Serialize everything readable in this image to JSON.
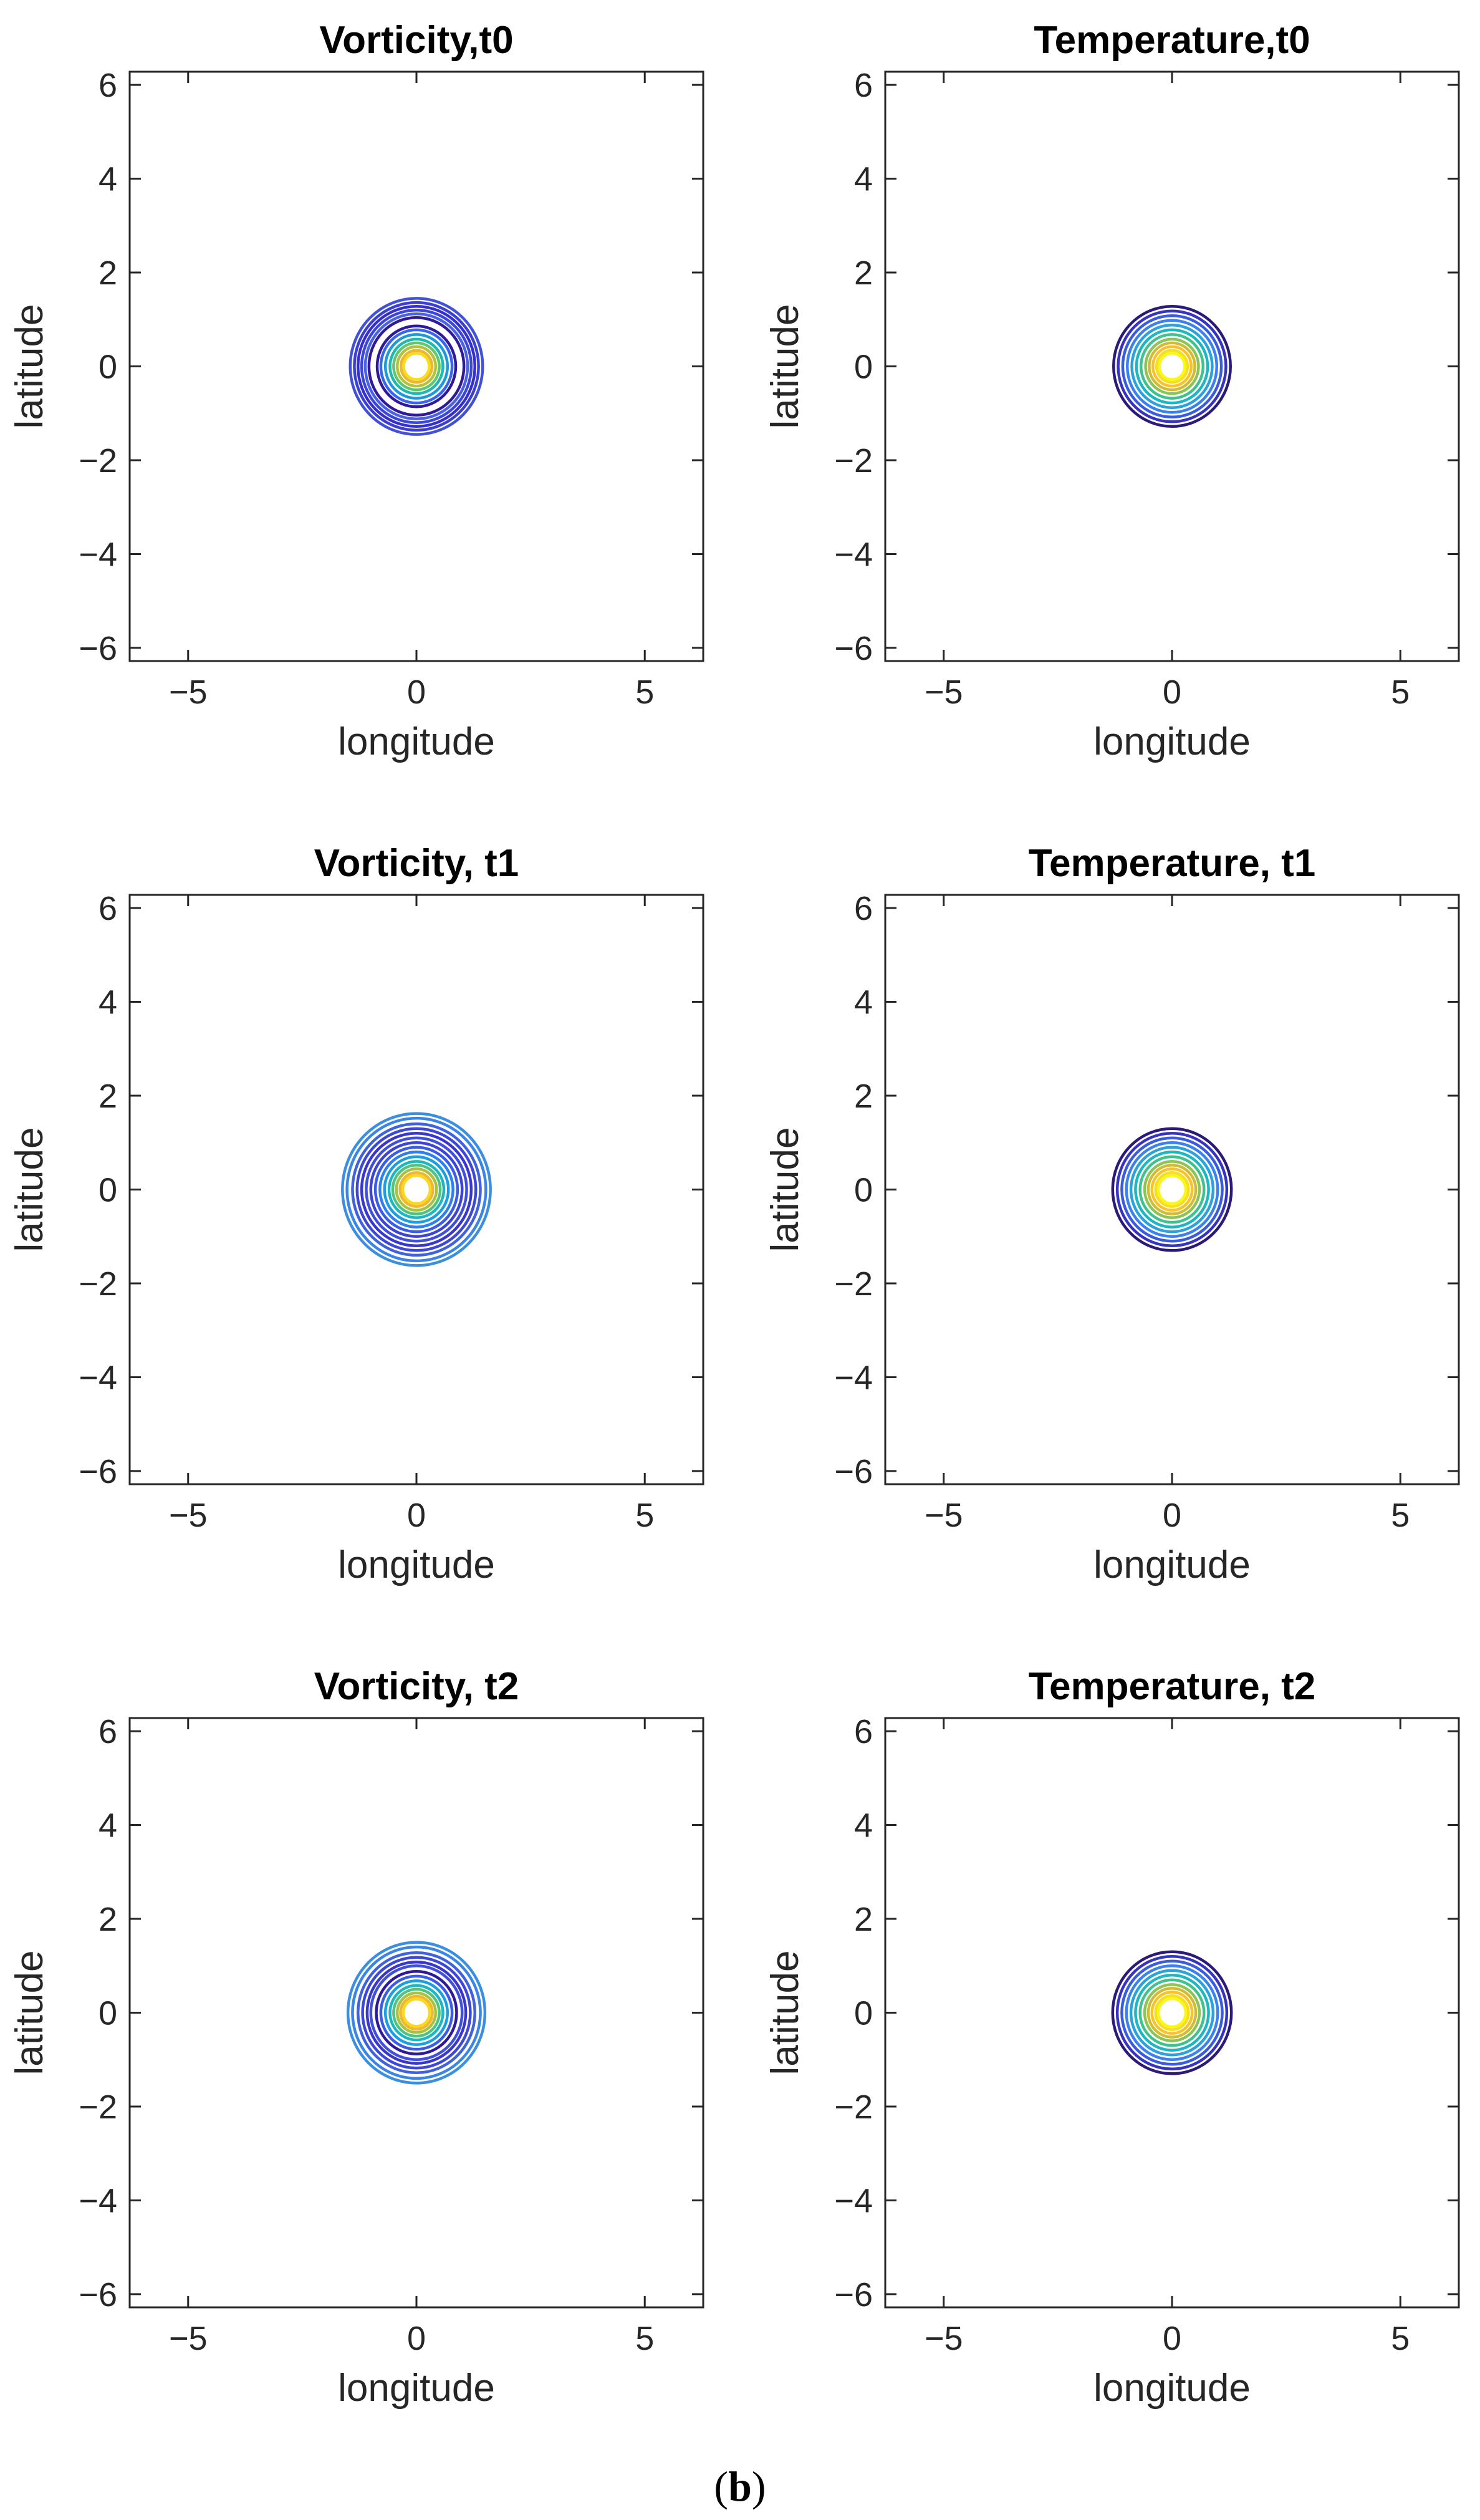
{
  "figure": {
    "caption_open": "(",
    "caption_letter": "b",
    "caption_close": ")"
  },
  "chart_data": [
    {
      "type": "contour",
      "title": "Vorticity,t0",
      "field": "vorticity",
      "xlabel": "longitude",
      "ylabel": "latitude",
      "xlim": [
        -6.28,
        6.28
      ],
      "ylim": [
        -6.28,
        6.28
      ],
      "xticks": [
        -5,
        0,
        5
      ],
      "yticks": [
        -6,
        -4,
        -2,
        0,
        2,
        4,
        6
      ],
      "center": [
        0,
        0
      ],
      "levels": [
        {
          "radius": 1.45,
          "color": "#4152d8"
        },
        {
          "radius": 1.36,
          "color": "#3b3fd3"
        },
        {
          "radius": 1.28,
          "color": "#352fcf"
        },
        {
          "radius": 1.2,
          "color": "#3d46da"
        },
        {
          "radius": 1.12,
          "color": "#4a63e6"
        },
        {
          "radius": 1.04,
          "color": "#2f1a9e"
        },
        {
          "radius": 0.86,
          "color": "#2f1a9e"
        },
        {
          "radius": 0.78,
          "color": "#3866ee"
        },
        {
          "radius": 0.68,
          "color": "#1f9ad8"
        },
        {
          "radius": 0.58,
          "color": "#1fb9b0"
        },
        {
          "radius": 0.5,
          "color": "#5fc770"
        },
        {
          "radius": 0.42,
          "color": "#b4c33a"
        },
        {
          "radius": 0.34,
          "color": "#eeb730"
        },
        {
          "radius": 0.28,
          "color": "#f8dc20"
        }
      ]
    },
    {
      "type": "contour",
      "title": "Temperature,t0",
      "field": "temperature",
      "xlabel": "longitude",
      "ylabel": "latitude",
      "xlim": [
        -6.28,
        6.28
      ],
      "ylim": [
        -6.28,
        6.28
      ],
      "xticks": [
        -5,
        0,
        5
      ],
      "yticks": [
        -6,
        -4,
        -2,
        0,
        2,
        4,
        6
      ],
      "center": [
        0,
        0
      ],
      "levels": [
        {
          "radius": 1.28,
          "color": "#2b1a7a"
        },
        {
          "radius": 1.18,
          "color": "#3634c0"
        },
        {
          "radius": 1.08,
          "color": "#3a5de0"
        },
        {
          "radius": 0.98,
          "color": "#3b82f0"
        },
        {
          "radius": 0.88,
          "color": "#2aa2dc"
        },
        {
          "radius": 0.78,
          "color": "#1cb7c0"
        },
        {
          "radius": 0.68,
          "color": "#3fc38e"
        },
        {
          "radius": 0.58,
          "color": "#8cc455"
        },
        {
          "radius": 0.5,
          "color": "#d1bc37"
        },
        {
          "radius": 0.42,
          "color": "#fac228"
        },
        {
          "radius": 0.34,
          "color": "#f5e020"
        },
        {
          "radius": 0.28,
          "color": "#f9f71a"
        }
      ]
    },
    {
      "type": "contour",
      "title": "Vorticity, t1",
      "field": "vorticity",
      "xlabel": "longitude",
      "ylabel": "latitude",
      "xlim": [
        -6.28,
        6.28
      ],
      "ylim": [
        -6.28,
        6.28
      ],
      "xticks": [
        -5,
        0,
        5
      ],
      "yticks": [
        -6,
        -4,
        -2,
        0,
        2,
        4,
        6
      ],
      "center": [
        0,
        0
      ],
      "levels": [
        {
          "radius": 1.62,
          "color": "#3c8fe0"
        },
        {
          "radius": 1.52,
          "color": "#3a86e6"
        },
        {
          "radius": 1.4,
          "color": "#4162de"
        },
        {
          "radius": 1.3,
          "color": "#3d48d8"
        },
        {
          "radius": 1.2,
          "color": "#3a36d0"
        },
        {
          "radius": 1.1,
          "color": "#4150dc"
        },
        {
          "radius": 1.0,
          "color": "#3d44d6"
        },
        {
          "radius": 0.9,
          "color": "#3b5ce8"
        },
        {
          "radius": 0.8,
          "color": "#2e7ff0"
        },
        {
          "radius": 0.7,
          "color": "#1c9fe0"
        },
        {
          "radius": 0.6,
          "color": "#1cb8c0"
        },
        {
          "radius": 0.52,
          "color": "#4fc480"
        },
        {
          "radius": 0.44,
          "color": "#a8c340"
        },
        {
          "radius": 0.36,
          "color": "#f0b832"
        },
        {
          "radius": 0.3,
          "color": "#f9d920"
        }
      ]
    },
    {
      "type": "contour",
      "title": "Temperature, t1",
      "field": "temperature",
      "xlabel": "longitude",
      "ylabel": "latitude",
      "xlim": [
        -6.28,
        6.28
      ],
      "ylim": [
        -6.28,
        6.28
      ],
      "xticks": [
        -5,
        0,
        5
      ],
      "yticks": [
        -6,
        -4,
        -2,
        0,
        2,
        4,
        6
      ],
      "center": [
        0,
        0
      ],
      "levels": [
        {
          "radius": 1.3,
          "color": "#2b1a7a"
        },
        {
          "radius": 1.2,
          "color": "#3634c0"
        },
        {
          "radius": 1.1,
          "color": "#3a5de0"
        },
        {
          "radius": 1.0,
          "color": "#3b82f0"
        },
        {
          "radius": 0.9,
          "color": "#2aa2dc"
        },
        {
          "radius": 0.8,
          "color": "#1cb7c0"
        },
        {
          "radius": 0.7,
          "color": "#3fc38e"
        },
        {
          "radius": 0.6,
          "color": "#8cc455"
        },
        {
          "radius": 0.52,
          "color": "#d1bc37"
        },
        {
          "radius": 0.44,
          "color": "#fac228"
        },
        {
          "radius": 0.36,
          "color": "#f5e020"
        },
        {
          "radius": 0.3,
          "color": "#f9f71a"
        }
      ]
    },
    {
      "type": "contour",
      "title": "Vorticity, t2",
      "field": "vorticity",
      "xlabel": "longitude",
      "ylabel": "latitude",
      "xlim": [
        -6.28,
        6.28
      ],
      "ylim": [
        -6.28,
        6.28
      ],
      "xticks": [
        -5,
        0,
        5
      ],
      "yticks": [
        -6,
        -4,
        -2,
        0,
        2,
        4,
        6
      ],
      "center": [
        0,
        0
      ],
      "levels": [
        {
          "radius": 1.5,
          "color": "#3c8fe0"
        },
        {
          "radius": 1.4,
          "color": "#3a86e6"
        },
        {
          "radius": 1.28,
          "color": "#4162de"
        },
        {
          "radius": 1.18,
          "color": "#3d48d8"
        },
        {
          "radius": 1.08,
          "color": "#3a36d0"
        },
        {
          "radius": 1.0,
          "color": "#4150dc"
        },
        {
          "radius": 0.88,
          "color": "#2f1a9e"
        },
        {
          "radius": 0.78,
          "color": "#3b5ce8"
        },
        {
          "radius": 0.68,
          "color": "#1c9fe0"
        },
        {
          "radius": 0.58,
          "color": "#1cb8c0"
        },
        {
          "radius": 0.5,
          "color": "#4fc480"
        },
        {
          "radius": 0.42,
          "color": "#a8c340"
        },
        {
          "radius": 0.35,
          "color": "#f0b832"
        },
        {
          "radius": 0.29,
          "color": "#f9d920"
        }
      ]
    },
    {
      "type": "contour",
      "title": "Temperature, t2",
      "field": "temperature",
      "xlabel": "longitude",
      "ylabel": "latitude",
      "xlim": [
        -6.28,
        6.28
      ],
      "ylim": [
        -6.28,
        6.28
      ],
      "xticks": [
        -5,
        0,
        5
      ],
      "yticks": [
        -6,
        -4,
        -2,
        0,
        2,
        4,
        6
      ],
      "center": [
        0,
        0
      ],
      "levels": [
        {
          "radius": 1.3,
          "color": "#2b1a7a"
        },
        {
          "radius": 1.2,
          "color": "#3634c0"
        },
        {
          "radius": 1.1,
          "color": "#3a5de0"
        },
        {
          "radius": 1.0,
          "color": "#3b82f0"
        },
        {
          "radius": 0.9,
          "color": "#2aa2dc"
        },
        {
          "radius": 0.8,
          "color": "#1cb7c0"
        },
        {
          "radius": 0.7,
          "color": "#3fc38e"
        },
        {
          "radius": 0.6,
          "color": "#8cc455"
        },
        {
          "radius": 0.52,
          "color": "#d1bc37"
        },
        {
          "radius": 0.44,
          "color": "#fac228"
        },
        {
          "radius": 0.36,
          "color": "#f5e020"
        },
        {
          "radius": 0.3,
          "color": "#f9f71a"
        }
      ]
    }
  ]
}
